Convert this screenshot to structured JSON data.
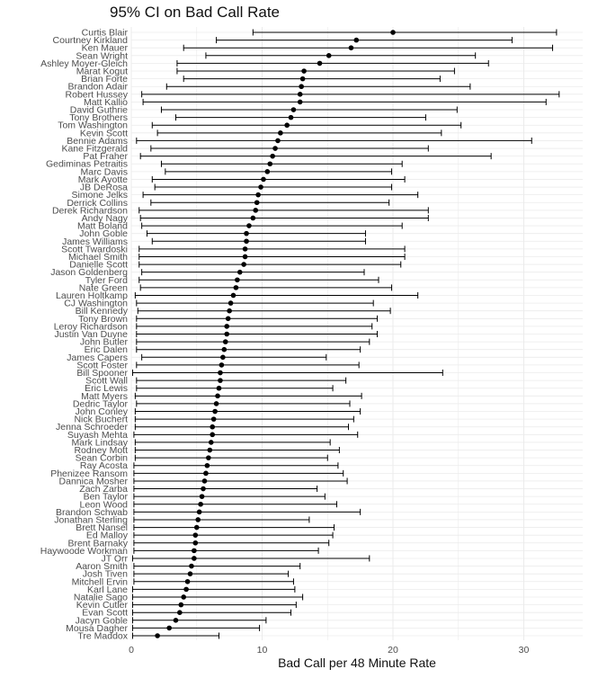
{
  "chart_data": {
    "type": "errorbar",
    "title": "95% CI on Bad Call Rate",
    "xlabel": "Bad Call per 48 Minute Rate",
    "ylabel": "",
    "xlim": [
      0,
      34.5
    ],
    "xticks": [
      0,
      10,
      20,
      30
    ],
    "grid": true,
    "colors": {
      "point": "#000000",
      "errorbar": "#000000",
      "grid": "#ebebeb"
    },
    "series": [
      {
        "label": "Curtis Blair",
        "value": 20.0,
        "low": 9.3,
        "high": 32.5
      },
      {
        "label": "Courtney Kirkland",
        "value": 17.2,
        "low": 6.5,
        "high": 29.1
      },
      {
        "label": "Ken Mauer",
        "value": 16.8,
        "low": 4.0,
        "high": 32.2
      },
      {
        "label": "Sean Wright",
        "value": 15.1,
        "low": 5.7,
        "high": 26.3
      },
      {
        "label": "Ashley Moyer-Gleich",
        "value": 14.4,
        "low": 3.5,
        "high": 27.3
      },
      {
        "label": "Marat Kogut",
        "value": 13.2,
        "low": 3.5,
        "high": 24.7
      },
      {
        "label": "Brian Forte",
        "value": 13.1,
        "low": 4.0,
        "high": 23.6
      },
      {
        "label": "Brandon Adair",
        "value": 13.0,
        "low": 2.7,
        "high": 25.9
      },
      {
        "label": "Robert Hussey",
        "value": 12.9,
        "low": 0.8,
        "high": 32.7
      },
      {
        "label": "Matt Kallio",
        "value": 12.9,
        "low": 0.9,
        "high": 31.7
      },
      {
        "label": "David Guthrie",
        "value": 12.4,
        "low": 2.3,
        "high": 24.9
      },
      {
        "label": "Tony Brothers",
        "value": 12.2,
        "low": 3.4,
        "high": 22.5
      },
      {
        "label": "Tom Washington",
        "value": 11.9,
        "low": 1.6,
        "high": 25.2
      },
      {
        "label": "Kevin Scott",
        "value": 11.4,
        "low": 2.0,
        "high": 23.7
      },
      {
        "label": "Bennie Adams",
        "value": 11.2,
        "low": 0.4,
        "high": 30.6
      },
      {
        "label": "Kane Fitzgerald",
        "value": 11.0,
        "low": 1.5,
        "high": 22.7
      },
      {
        "label": "Pat Fraher",
        "value": 10.8,
        "low": 0.7,
        "high": 27.5
      },
      {
        "label": "Gediminas Petraitis",
        "value": 10.6,
        "low": 2.3,
        "high": 20.7
      },
      {
        "label": "Marc Davis",
        "value": 10.4,
        "low": 2.6,
        "high": 19.9
      },
      {
        "label": "Mark Ayotte",
        "value": 10.1,
        "low": 1.6,
        "high": 20.9
      },
      {
        "label": "JB DeRosa",
        "value": 9.9,
        "low": 1.8,
        "high": 19.9
      },
      {
        "label": "Simone Jelks",
        "value": 9.7,
        "low": 0.9,
        "high": 21.9
      },
      {
        "label": "Derrick Collins",
        "value": 9.6,
        "low": 1.5,
        "high": 19.7
      },
      {
        "label": "Derek Richardson",
        "value": 9.5,
        "low": 0.6,
        "high": 22.7
      },
      {
        "label": "Andy Nagy",
        "value": 9.3,
        "low": 0.7,
        "high": 22.7
      },
      {
        "label": "Matt Boland",
        "value": 9.0,
        "low": 0.8,
        "high": 20.7
      },
      {
        "label": "John Goble",
        "value": 8.8,
        "low": 1.2,
        "high": 17.9
      },
      {
        "label": "James Williams",
        "value": 8.8,
        "low": 1.6,
        "high": 17.9
      },
      {
        "label": "Scott Twardoski",
        "value": 8.7,
        "low": 0.6,
        "high": 20.9
      },
      {
        "label": "Michael Smith",
        "value": 8.7,
        "low": 0.6,
        "high": 20.9
      },
      {
        "label": "Danielle Scott",
        "value": 8.6,
        "low": 0.6,
        "high": 20.6
      },
      {
        "label": "Jason Goldenberg",
        "value": 8.3,
        "low": 0.8,
        "high": 17.8
      },
      {
        "label": "Tyler Ford",
        "value": 8.1,
        "low": 0.6,
        "high": 18.9
      },
      {
        "label": "Nate Green",
        "value": 8.0,
        "low": 0.7,
        "high": 19.9
      },
      {
        "label": "Lauren Holtkamp",
        "value": 7.8,
        "low": 0.3,
        "high": 21.9
      },
      {
        "label": "CJ Washington",
        "value": 7.6,
        "low": 0.4,
        "high": 18.5
      },
      {
        "label": "Bill Kennedy",
        "value": 7.5,
        "low": 0.5,
        "high": 19.8
      },
      {
        "label": "Tony Brown",
        "value": 7.4,
        "low": 0.4,
        "high": 18.8
      },
      {
        "label": "Leroy Richardson",
        "value": 7.3,
        "low": 0.4,
        "high": 18.4
      },
      {
        "label": "Justin Van Duyne",
        "value": 7.3,
        "low": 0.4,
        "high": 18.8
      },
      {
        "label": "John Butler",
        "value": 7.2,
        "low": 0.4,
        "high": 18.2
      },
      {
        "label": "Eric Dalen",
        "value": 7.1,
        "low": 0.4,
        "high": 17.5
      },
      {
        "label": "James Capers",
        "value": 7.0,
        "low": 0.8,
        "high": 14.9
      },
      {
        "label": "Scott Foster",
        "value": 6.9,
        "low": 0.4,
        "high": 17.4
      },
      {
        "label": "Bill Spooner",
        "value": 6.8,
        "low": 0.1,
        "high": 23.8
      },
      {
        "label": "Scott Wall",
        "value": 6.8,
        "low": 0.4,
        "high": 16.4
      },
      {
        "label": "Eric Lewis",
        "value": 6.7,
        "low": 0.4,
        "high": 15.4
      },
      {
        "label": "Matt Myers",
        "value": 6.6,
        "low": 0.3,
        "high": 17.6
      },
      {
        "label": "Dedric Taylor",
        "value": 6.5,
        "low": 0.4,
        "high": 16.7
      },
      {
        "label": "John Conley",
        "value": 6.4,
        "low": 0.3,
        "high": 17.5
      },
      {
        "label": "Nick Buchert",
        "value": 6.3,
        "low": 0.3,
        "high": 17.0
      },
      {
        "label": "Jenna Schroeder",
        "value": 6.2,
        "low": 0.3,
        "high": 16.6
      },
      {
        "label": "Suyash Mehta",
        "value": 6.2,
        "low": 0.2,
        "high": 17.3
      },
      {
        "label": "Mark Lindsay",
        "value": 6.1,
        "low": 0.3,
        "high": 15.2
      },
      {
        "label": "Rodney Mott",
        "value": 6.0,
        "low": 0.3,
        "high": 15.9
      },
      {
        "label": "Sean Corbin",
        "value": 5.9,
        "low": 0.3,
        "high": 15.0
      },
      {
        "label": "Ray Acosta",
        "value": 5.8,
        "low": 0.2,
        "high": 15.8
      },
      {
        "label": "Phenizee Ransom",
        "value": 5.7,
        "low": 0.2,
        "high": 16.2
      },
      {
        "label": "Dannica Mosher",
        "value": 5.6,
        "low": 0.2,
        "high": 16.5
      },
      {
        "label": "Zach Zarba",
        "value": 5.5,
        "low": 0.2,
        "high": 14.2
      },
      {
        "label": "Ben Taylor",
        "value": 5.4,
        "low": 0.2,
        "high": 14.8
      },
      {
        "label": "Leon Wood",
        "value": 5.3,
        "low": 0.2,
        "high": 15.7
      },
      {
        "label": "Brandon Schwab",
        "value": 5.2,
        "low": 0.2,
        "high": 17.5
      },
      {
        "label": "Jonathan Sterling",
        "value": 5.1,
        "low": 0.2,
        "high": 13.6
      },
      {
        "label": "Brett Nansel",
        "value": 5.0,
        "low": 0.2,
        "high": 15.5
      },
      {
        "label": "Ed Malloy",
        "value": 4.9,
        "low": 0.2,
        "high": 15.4
      },
      {
        "label": "Brent Barnaky",
        "value": 4.9,
        "low": 0.2,
        "high": 15.1
      },
      {
        "label": "Haywoode Workman",
        "value": 4.8,
        "low": 0.2,
        "high": 14.3
      },
      {
        "label": "JT Orr",
        "value": 4.8,
        "low": 0.1,
        "high": 18.2
      },
      {
        "label": "Aaron Smith",
        "value": 4.6,
        "low": 0.2,
        "high": 12.9
      },
      {
        "label": "Josh Tiven",
        "value": 4.5,
        "low": 0.2,
        "high": 12.0
      },
      {
        "label": "Mitchell Ervin",
        "value": 4.3,
        "low": 0.2,
        "high": 12.4
      },
      {
        "label": "Karl Lane",
        "value": 4.2,
        "low": 0.1,
        "high": 12.5
      },
      {
        "label": "Natalie Sago",
        "value": 4.0,
        "low": 0.1,
        "high": 13.1
      },
      {
        "label": "Kevin Cutler",
        "value": 3.8,
        "low": 0.1,
        "high": 12.6
      },
      {
        "label": "Evan Scott",
        "value": 3.7,
        "low": 0.1,
        "high": 12.2
      },
      {
        "label": "Jacyn Goble",
        "value": 3.4,
        "low": 0.1,
        "high": 10.3
      },
      {
        "label": "Mousa Dagher",
        "value": 2.9,
        "low": 0.1,
        "high": 9.8
      },
      {
        "label": "Tre Maddox",
        "value": 2.0,
        "low": 0.1,
        "high": 6.7
      }
    ]
  }
}
